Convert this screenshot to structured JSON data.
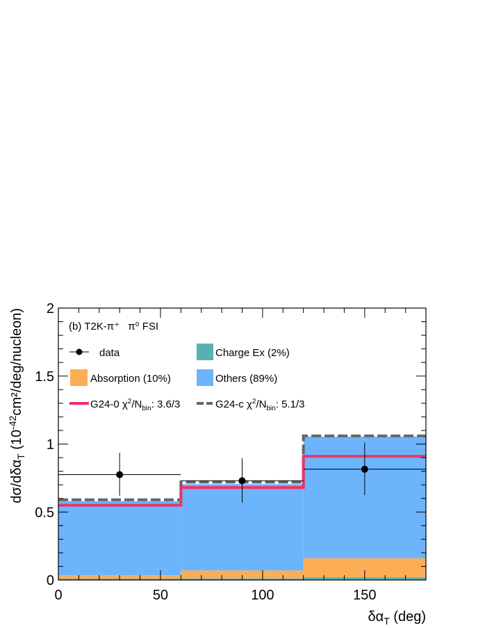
{
  "chart_data": {
    "type": "bar",
    "panel_label": "(b) T2K-π⁺",
    "panel_label_suffix": "π⁰ FSI",
    "xlabel": "δα",
    "xlabel_sub": "T",
    "xlabel_unit": " (deg)",
    "ylabel": "dσ/dδα",
    "ylabel_sub": "T",
    "ylabel_unit_pre": " (10",
    "ylabel_unit_exp": "-42",
    "ylabel_unit_post": "cm²/deg/nucleon)",
    "xlim": [
      0,
      180
    ],
    "ylim": [
      0,
      2
    ],
    "x_ticks": [
      0,
      50,
      100,
      150
    ],
    "y_ticks": [
      0,
      0.5,
      1,
      1.5,
      2
    ],
    "y_tick_labels": [
      "0",
      "0.5",
      "1",
      "1.5",
      "2"
    ],
    "bin_edges": [
      0,
      60,
      120,
      180
    ],
    "stack": [
      {
        "name": "Charge Ex (2%)",
        "color": "#5bb0b6",
        "values": [
          0.01,
          0.012,
          0.02
        ]
      },
      {
        "name": "Absorption (10%)",
        "color": "#fbae55",
        "values": [
          0.025,
          0.058,
          0.14
        ]
      },
      {
        "name": "Others (89%)",
        "color": "#6cb4fc",
        "values": [
          0.545,
          0.635,
          0.895
        ]
      }
    ],
    "lines": [
      {
        "name": "G24-0",
        "chi_pre": " χ",
        "chi_sup": "2",
        "chi_mid": "/N",
        "chi_sub": "bin",
        "chi_val": ": 3.6/3",
        "color": "#ee3465",
        "style": "solid",
        "values": [
          0.55,
          0.68,
          0.91
        ]
      },
      {
        "name": "G24-c",
        "chi_pre": " χ",
        "chi_sup": "2",
        "chi_mid": "/N",
        "chi_sub": "bin",
        "chi_val": ": 5.1/3",
        "color": "#666666",
        "style": "dashed",
        "values": [
          0.59,
          0.72,
          1.06
        ]
      }
    ],
    "data_points": {
      "name": "data",
      "points": [
        {
          "x": 30,
          "y": 0.775,
          "xerr": 30,
          "yerr_low": 0.155,
          "yerr_high": 0.16
        },
        {
          "x": 90,
          "y": 0.73,
          "xerr": 30,
          "yerr_low": 0.16,
          "yerr_high": 0.165
        },
        {
          "x": 150,
          "y": 0.815,
          "xerr": 30,
          "yerr_low": 0.19,
          "yerr_high": 0.195
        }
      ]
    }
  }
}
